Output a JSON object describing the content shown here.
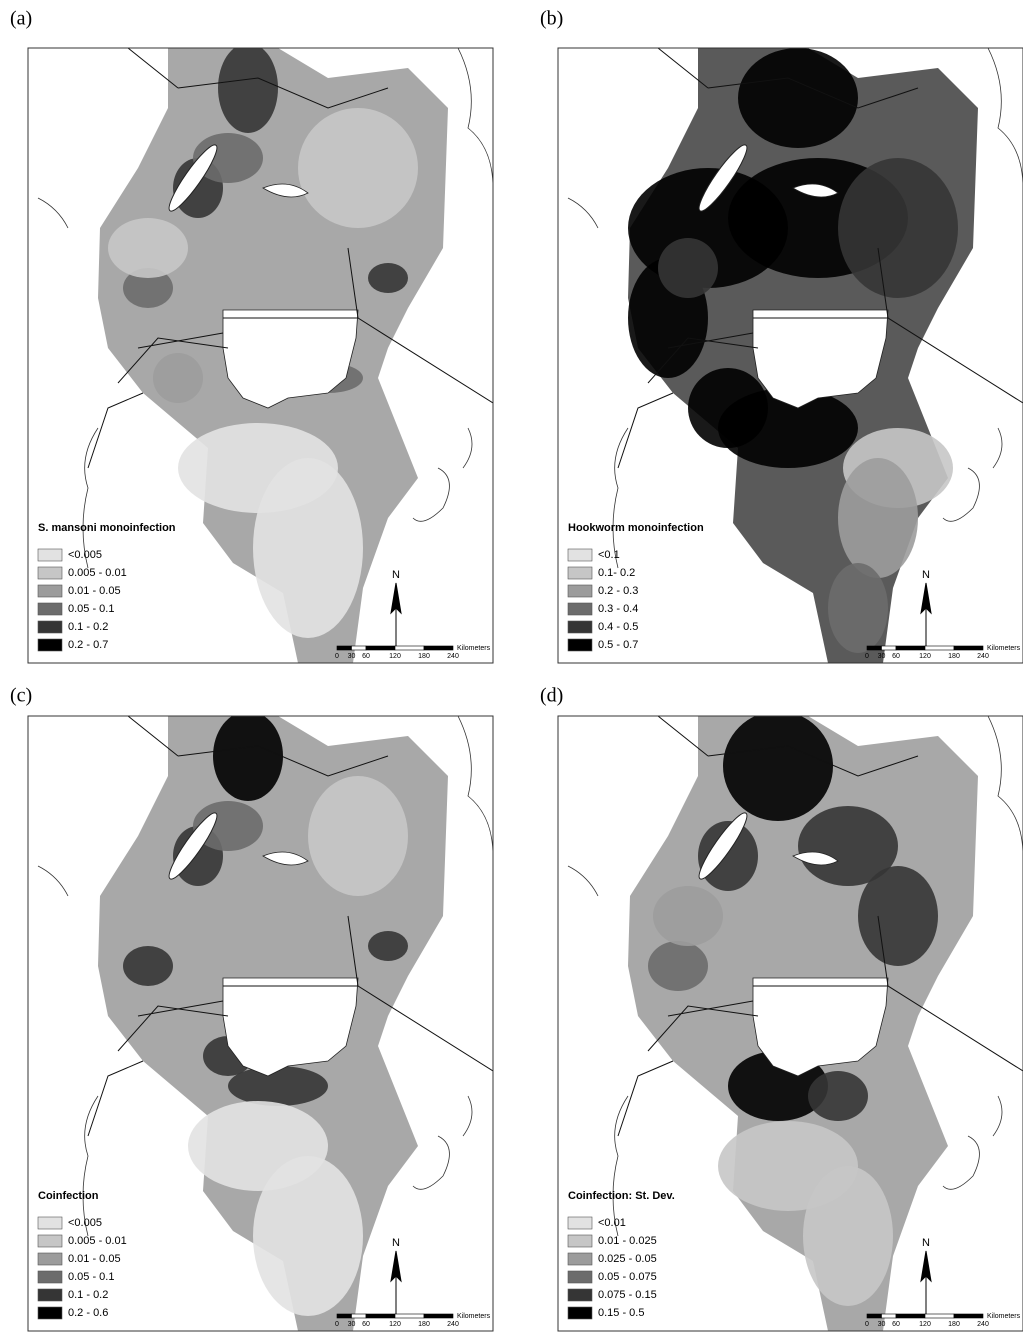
{
  "panels": [
    {
      "label": "(a)",
      "legend": {
        "title": "S. mansoni monoinfection",
        "items": [
          "<0.005",
          "0.005 - 0.01",
          "0.01 - 0.05",
          "0.05 - 0.1",
          "0.1 - 0.2",
          "0.2 - 0.7"
        ]
      },
      "north": "N",
      "scale": {
        "ticks": [
          0,
          30,
          60,
          120,
          180,
          240
        ],
        "unit": "Kilometers"
      }
    },
    {
      "label": "(b)",
      "legend": {
        "title": "Hookworm monoinfection",
        "items": [
          "<0.1",
          "0.1- 0.2",
          "0.2 - 0.3",
          "0.3 - 0.4",
          "0.4 - 0.5",
          "0.5 - 0.7"
        ]
      },
      "north": "N",
      "scale": {
        "ticks": [
          0,
          30,
          60,
          120,
          180,
          240
        ],
        "unit": "Kilometers"
      }
    },
    {
      "label": "(c)",
      "legend": {
        "title": "Coinfection",
        "items": [
          "<0.005",
          "0.005 - 0.01",
          "0.01 - 0.05",
          "0.05 - 0.1",
          "0.1 - 0.2",
          "0.2 - 0.6"
        ]
      },
      "north": "N",
      "scale": {
        "ticks": [
          0,
          30,
          60,
          120,
          180,
          240
        ],
        "unit": "Kilometers"
      }
    },
    {
      "label": "(d)",
      "legend": {
        "title": "Coinfection: St. Dev.",
        "items": [
          "<0.01",
          "0.01 - 0.025",
          "0.025 - 0.05",
          "0.05 - 0.075",
          "0.075 - 0.15",
          "0.15 - 0.5"
        ]
      },
      "north": "N",
      "scale": {
        "ticks": [
          0,
          30,
          60,
          120,
          180,
          240
        ],
        "unit": "Kilometers"
      }
    }
  ]
}
